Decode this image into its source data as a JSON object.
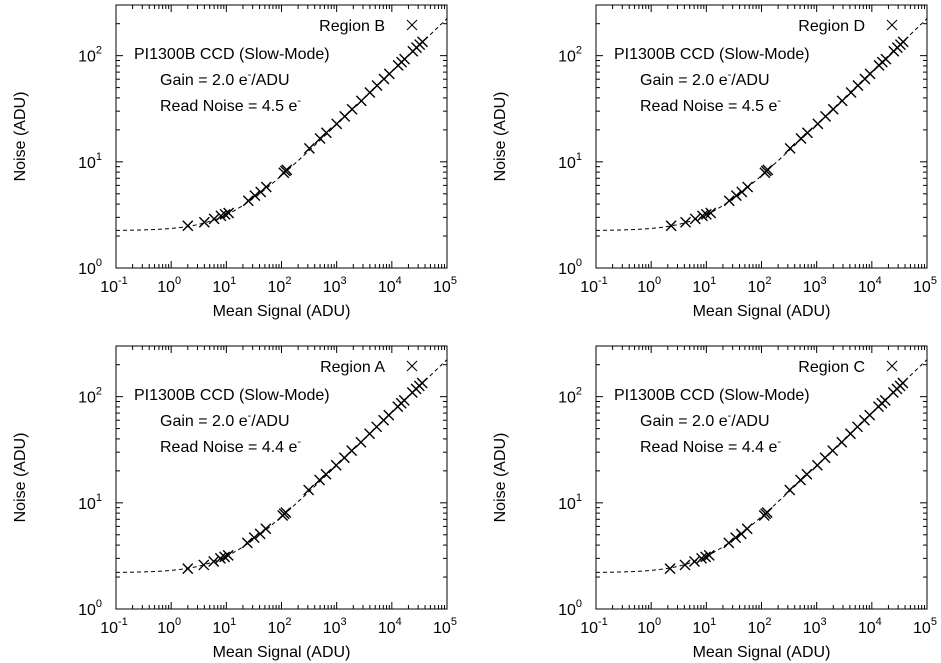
{
  "chart_data": [
    {
      "type": "scatter",
      "panel": "Region B",
      "legend": "Region B",
      "legend_position": "top-right",
      "annotation": {
        "line1": "PI1300B CCD (Slow-Mode)",
        "line2_prefix": "Gain = 2.0 e",
        "line2_sup": "-",
        "line2_suffix": "/ADU",
        "line3_prefix": "Read Noise = 4.5 e",
        "line3_sup": "-"
      },
      "xlabel": "Mean Signal (ADU)",
      "ylabel": "Noise (ADU)",
      "xscale": "log",
      "yscale": "log",
      "xlim": [
        0.1,
        100000
      ],
      "ylim": [
        1,
        300
      ],
      "xticks": [
        0.1,
        1,
        10,
        100,
        1000,
        10000,
        100000
      ],
      "xtick_exponents": [
        "-1",
        "0",
        "1",
        "2",
        "3",
        "4",
        "5"
      ],
      "yticks": [
        1,
        10,
        100
      ],
      "ytick_exponents": [
        "0",
        "1",
        "2"
      ],
      "tick_base": "10",
      "grid": false,
      "model": {
        "gain": 2.0,
        "read_noise": 4.5,
        "style": "dashed"
      },
      "x": [
        2.0,
        4.0,
        6.0,
        8.0,
        9.5,
        11,
        25,
        33,
        42,
        53,
        110,
        118,
        125,
        320,
        500,
        650,
        1000,
        1400,
        1900,
        2800,
        4000,
        5400,
        7200,
        9000,
        13000,
        15000,
        17000,
        24000,
        28000,
        32000,
        36000
      ],
      "y": [
        2.5,
        2.7,
        2.9,
        3.1,
        3.2,
        3.3,
        4.3,
        4.8,
        5.2,
        5.8,
        7.9,
        8.2,
        8.4,
        13.4,
        16.6,
        18.8,
        22.8,
        26.8,
        31.3,
        37.5,
        45.0,
        52.3,
        60.3,
        67.4,
        81.0,
        87.0,
        92.7,
        110.0,
        118.9,
        127.0,
        135.0
      ]
    },
    {
      "type": "scatter",
      "panel": "Region D",
      "legend": "Region D",
      "legend_position": "top-right",
      "annotation": {
        "line1": "PI1300B CCD (Slow-Mode)",
        "line2_prefix": "Gain = 2.0 e",
        "line2_sup": "-",
        "line2_suffix": "/ADU",
        "line3_prefix": "Read Noise = 4.5 e",
        "line3_sup": "-"
      },
      "xlabel": "Mean Signal (ADU)",
      "ylabel": "Noise (ADU)",
      "xscale": "log",
      "yscale": "log",
      "xlim": [
        0.1,
        100000
      ],
      "ylim": [
        1,
        300
      ],
      "xticks": [
        0.1,
        1,
        10,
        100,
        1000,
        10000,
        100000
      ],
      "xtick_exponents": [
        "-1",
        "0",
        "1",
        "2",
        "3",
        "4",
        "5"
      ],
      "yticks": [
        1,
        10,
        100
      ],
      "ytick_exponents": [
        "0",
        "1",
        "2"
      ],
      "tick_base": "10",
      "grid": false,
      "model": {
        "gain": 2.0,
        "read_noise": 4.5,
        "style": "dashed"
      },
      "x": [
        2.3,
        4.2,
        6.3,
        8.5,
        10,
        12,
        26,
        35,
        44,
        56,
        115,
        122,
        130,
        330,
        520,
        680,
        1050,
        1450,
        2000,
        2900,
        4200,
        5600,
        7500,
        9300,
        13500,
        15500,
        18000,
        25000,
        29000,
        33000,
        37000
      ],
      "y": [
        2.5,
        2.7,
        2.9,
        3.1,
        3.2,
        3.3,
        4.3,
        4.8,
        5.2,
        5.8,
        7.9,
        8.2,
        8.4,
        13.4,
        16.6,
        18.8,
        22.8,
        26.8,
        31.3,
        37.5,
        45.0,
        52.3,
        60.3,
        67.4,
        81.0,
        87.0,
        92.7,
        110.0,
        118.9,
        127.0,
        135.0
      ]
    },
    {
      "type": "scatter",
      "panel": "Region A",
      "legend": "Region A",
      "legend_position": "top-right",
      "annotation": {
        "line1": "PI1300B CCD (Slow-Mode)",
        "line2_prefix": "Gain = 2.0 e",
        "line2_sup": "-",
        "line2_suffix": "/ADU",
        "line3_prefix": "Read Noise = 4.4 e",
        "line3_sup": "-"
      },
      "xlabel": "Mean Signal (ADU)",
      "ylabel": "Noise (ADU)",
      "xscale": "log",
      "yscale": "log",
      "xlim": [
        0.1,
        100000
      ],
      "ylim": [
        1,
        300
      ],
      "xticks": [
        0.1,
        1,
        10,
        100,
        1000,
        10000,
        100000
      ],
      "xtick_exponents": [
        "-1",
        "0",
        "1",
        "2",
        "3",
        "4",
        "5"
      ],
      "yticks": [
        1,
        10,
        100
      ],
      "ytick_exponents": [
        "0",
        "1",
        "2"
      ],
      "tick_base": "10",
      "grid": false,
      "model": {
        "gain": 2.0,
        "read_noise": 4.4,
        "style": "dashed"
      },
      "x": [
        2.0,
        3.9,
        5.9,
        7.8,
        9.3,
        10.8,
        24,
        32,
        41,
        52,
        105,
        112,
        120,
        310,
        490,
        640,
        980,
        1380,
        1870,
        2750,
        3950,
        5300,
        7100,
        8800,
        12800,
        14800,
        16800,
        23500,
        27500,
        31500,
        35500
      ],
      "y": [
        2.4,
        2.6,
        2.8,
        3.0,
        3.1,
        3.2,
        4.2,
        4.7,
        5.1,
        5.7,
        7.6,
        7.9,
        8.1,
        13.2,
        16.4,
        18.6,
        22.6,
        26.6,
        31.0,
        37.2,
        44.7,
        52.0,
        60.0,
        67.0,
        80.6,
        86.6,
        92.2,
        109.5,
        118.4,
        126.5,
        134.4
      ]
    },
    {
      "type": "scatter",
      "panel": "Region C",
      "legend": "Region C",
      "legend_position": "top-right",
      "annotation": {
        "line1": "PI1300B CCD (Slow-Mode)",
        "line2_prefix": "Gain = 2.0 e",
        "line2_sup": "-",
        "line2_suffix": "/ADU",
        "line3_prefix": "Read Noise = 4.4 e",
        "line3_sup": "-"
      },
      "xlabel": "Mean Signal (ADU)",
      "ylabel": "Noise (ADU)",
      "xscale": "log",
      "yscale": "log",
      "xlim": [
        0.1,
        100000
      ],
      "ylim": [
        1,
        300
      ],
      "xticks": [
        0.1,
        1,
        10,
        100,
        1000,
        10000,
        100000
      ],
      "xtick_exponents": [
        "-1",
        "0",
        "1",
        "2",
        "3",
        "4",
        "5"
      ],
      "yticks": [
        1,
        10,
        100
      ],
      "ytick_exponents": [
        "0",
        "1",
        "2"
      ],
      "tick_base": "10",
      "grid": false,
      "model": {
        "gain": 2.0,
        "read_noise": 4.4,
        "style": "dashed"
      },
      "x": [
        2.2,
        4.1,
        6.1,
        8.2,
        9.7,
        11.3,
        25.5,
        34,
        43,
        55,
        112,
        119,
        127,
        325,
        510,
        665,
        1030,
        1420,
        1950,
        2850,
        4100,
        5500,
        7350,
        9150,
        13200,
        15200,
        17500,
        24500,
        28500,
        32500,
        36500
      ],
      "y": [
        2.4,
        2.6,
        2.8,
        3.0,
        3.1,
        3.2,
        4.2,
        4.7,
        5.1,
        5.7,
        7.6,
        7.9,
        8.1,
        13.2,
        16.4,
        18.6,
        22.6,
        26.6,
        31.0,
        37.2,
        44.7,
        52.0,
        60.0,
        67.0,
        80.6,
        86.6,
        92.2,
        109.5,
        118.4,
        126.5,
        134.4
      ]
    }
  ]
}
